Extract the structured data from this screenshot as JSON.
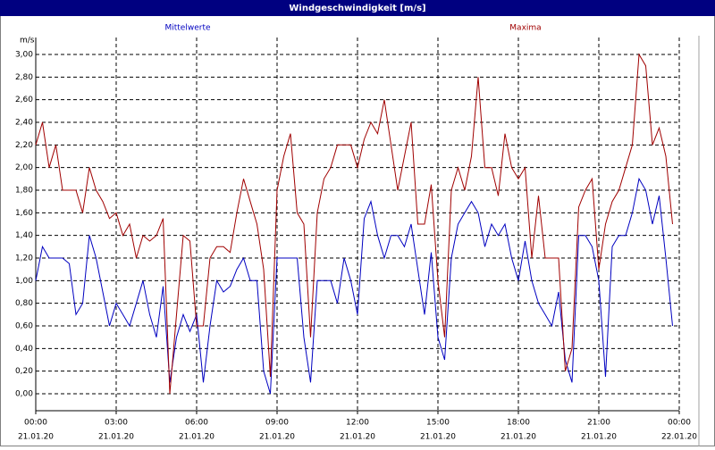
{
  "chart_data": {
    "type": "line",
    "title": "Windgeschwindigkeit [m/s]",
    "y_unit": "m/s",
    "x": [
      0,
      0.25,
      0.5,
      0.75,
      1,
      1.25,
      1.5,
      1.75,
      2,
      2.25,
      2.5,
      2.75,
      3,
      3.25,
      3.5,
      3.75,
      4,
      4.25,
      4.5,
      4.75,
      5,
      5.25,
      5.5,
      5.75,
      6,
      6.25,
      6.5,
      6.75,
      7,
      7.25,
      7.5,
      7.75,
      8,
      8.25,
      8.5,
      8.75,
      9,
      9.25,
      9.5,
      9.75,
      10,
      10.25,
      10.5,
      10.75,
      11,
      11.25,
      11.5,
      11.75,
      12,
      12.25,
      12.5,
      12.75,
      13,
      13.25,
      13.5,
      13.75,
      14,
      14.25,
      14.5,
      14.75,
      15,
      15.25,
      15.5,
      15.75,
      16,
      16.25,
      16.5,
      16.75,
      17,
      17.25,
      17.5,
      17.75,
      18,
      18.25,
      18.5,
      18.75,
      19,
      19.25,
      19.5,
      19.75,
      20,
      20.25,
      20.5,
      20.75,
      21,
      21.25,
      21.5,
      21.75,
      22,
      22.25,
      22.5,
      22.75,
      23,
      23.25,
      23.5,
      23.75
    ],
    "series": [
      {
        "name": "Mittelwerte",
        "color": "#0000c0",
        "values": [
          1.0,
          1.3,
          1.2,
          1.2,
          1.2,
          1.15,
          0.7,
          0.8,
          1.4,
          1.2,
          0.9,
          0.6,
          0.8,
          0.7,
          0.6,
          0.8,
          1.0,
          0.7,
          0.5,
          0.95,
          0.1,
          0.5,
          0.7,
          0.55,
          0.7,
          0.1,
          0.6,
          1.0,
          0.9,
          0.95,
          1.1,
          1.2,
          1.0,
          1.0,
          0.2,
          0.0,
          1.2,
          1.2,
          1.2,
          1.2,
          0.5,
          0.1,
          1.0,
          1.0,
          1.0,
          0.8,
          1.2,
          1.0,
          0.7,
          1.55,
          1.7,
          1.4,
          1.2,
          1.4,
          1.4,
          1.3,
          1.5,
          1.1,
          0.7,
          1.25,
          0.5,
          0.3,
          1.2,
          1.5,
          1.6,
          1.7,
          1.6,
          1.3,
          1.5,
          1.4,
          1.5,
          1.2,
          1.0,
          1.35,
          1.0,
          0.8,
          0.7,
          0.6,
          0.9,
          0.3,
          0.1,
          1.4,
          1.4,
          1.3,
          1.0,
          0.15,
          1.3,
          1.4,
          1.4,
          1.6,
          1.9,
          1.8,
          1.5,
          1.75,
          1.2,
          0.6
        ]
      },
      {
        "name": "Maxima",
        "color": "#a00000",
        "values": [
          2.2,
          2.4,
          2.0,
          2.2,
          1.8,
          1.8,
          1.8,
          1.6,
          2.0,
          1.8,
          1.7,
          1.55,
          1.6,
          1.4,
          1.5,
          1.2,
          1.4,
          1.35,
          1.4,
          1.55,
          0.0,
          0.7,
          1.4,
          1.35,
          0.6,
          0.6,
          1.2,
          1.3,
          1.3,
          1.25,
          1.6,
          1.9,
          1.7,
          1.5,
          1.1,
          0.15,
          1.8,
          2.1,
          2.3,
          1.6,
          1.5,
          0.5,
          1.6,
          1.9,
          2.0,
          2.2,
          2.2,
          2.2,
          2.0,
          2.25,
          2.4,
          2.3,
          2.6,
          2.2,
          1.8,
          2.1,
          2.4,
          1.5,
          1.5,
          1.85,
          1.0,
          0.5,
          1.8,
          2.0,
          1.8,
          2.1,
          2.8,
          2.0,
          2.0,
          1.75,
          2.3,
          2.0,
          1.9,
          2.0,
          1.2,
          1.75,
          1.2,
          1.2,
          1.2,
          0.2,
          0.4,
          1.65,
          1.8,
          1.9,
          1.1,
          1.5,
          1.7,
          1.8,
          2.0,
          2.2,
          3.0,
          2.9,
          2.2,
          2.35,
          2.1,
          1.5
        ]
      }
    ],
    "xlim": [
      0,
      24
    ],
    "xticks": [
      {
        "value": 0,
        "label": "00:00"
      },
      {
        "value": 3,
        "label": "03:00"
      },
      {
        "value": 6,
        "label": "06:00"
      },
      {
        "value": 9,
        "label": "09:00"
      },
      {
        "value": 12,
        "label": "12:00"
      },
      {
        "value": 15,
        "label": "15:00"
      },
      {
        "value": 18,
        "label": "18:00"
      },
      {
        "value": 21,
        "label": "21:00"
      },
      {
        "value": 24,
        "label": "00:00"
      }
    ],
    "xtick_dates": [
      "21.01.20",
      "21.01.20",
      "21.01.20",
      "21.01.20",
      "21.01.20",
      "21.01.20",
      "21.01.20",
      "21.01.20",
      "22.01.20"
    ],
    "ylim": [
      -0.15,
      3.15
    ],
    "yticks": [
      {
        "value": 0,
        "label": "0,00"
      },
      {
        "value": 0.2,
        "label": "0,20"
      },
      {
        "value": 0.4,
        "label": "0,40"
      },
      {
        "value": 0.6,
        "label": "0,60"
      },
      {
        "value": 0.8,
        "label": "0,80"
      },
      {
        "value": 1,
        "label": "1,00"
      },
      {
        "value": 1.2,
        "label": "1,20"
      },
      {
        "value": 1.4,
        "label": "1,40"
      },
      {
        "value": 1.6,
        "label": "1,60"
      },
      {
        "value": 1.8,
        "label": "1,80"
      },
      {
        "value": 2,
        "label": "2,00"
      },
      {
        "value": 2.2,
        "label": "2,20"
      },
      {
        "value": 2.4,
        "label": "2,40"
      },
      {
        "value": 2.6,
        "label": "2,60"
      },
      {
        "value": 2.8,
        "label": "2,80"
      },
      {
        "value": 3,
        "label": "3,00"
      }
    ],
    "grid": true
  }
}
